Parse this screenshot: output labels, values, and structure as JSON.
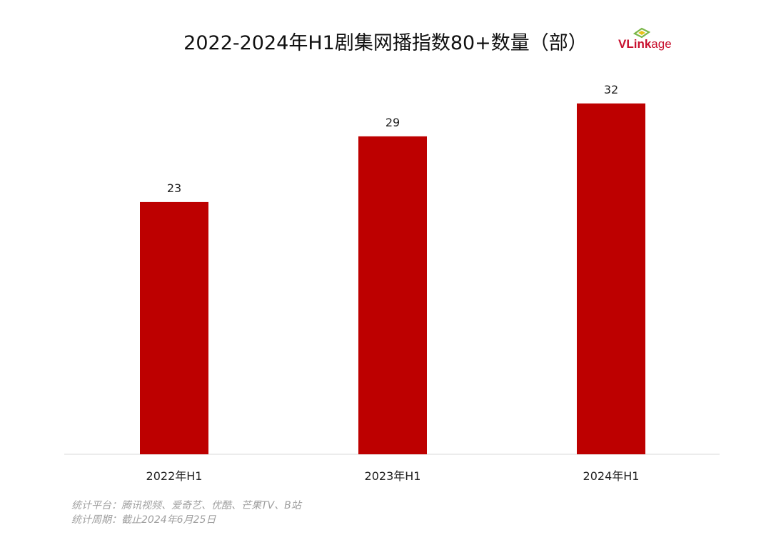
{
  "chart_data": {
    "type": "bar",
    "title": "2022-2024年H1剧集网播指数80+数量（部）",
    "categories": [
      "2022年H1",
      "2023年H1",
      "2024年H1"
    ],
    "values": [
      23,
      29,
      32
    ],
    "xlabel": "",
    "ylabel": "",
    "ylim": [
      0,
      33
    ],
    "grid": false,
    "legend": "none",
    "bar_color": "#bd0000"
  },
  "logo": {
    "text_v": "V",
    "text_link": "Link",
    "text_age": "age",
    "color": "#c8102e",
    "mark_color": "#7ab648"
  },
  "footnotes": {
    "line1": "统计平台：腾讯视频、爱奇艺、优酷、芒果TV、B站",
    "line2": "统计周期：截止2024年6月25日"
  }
}
